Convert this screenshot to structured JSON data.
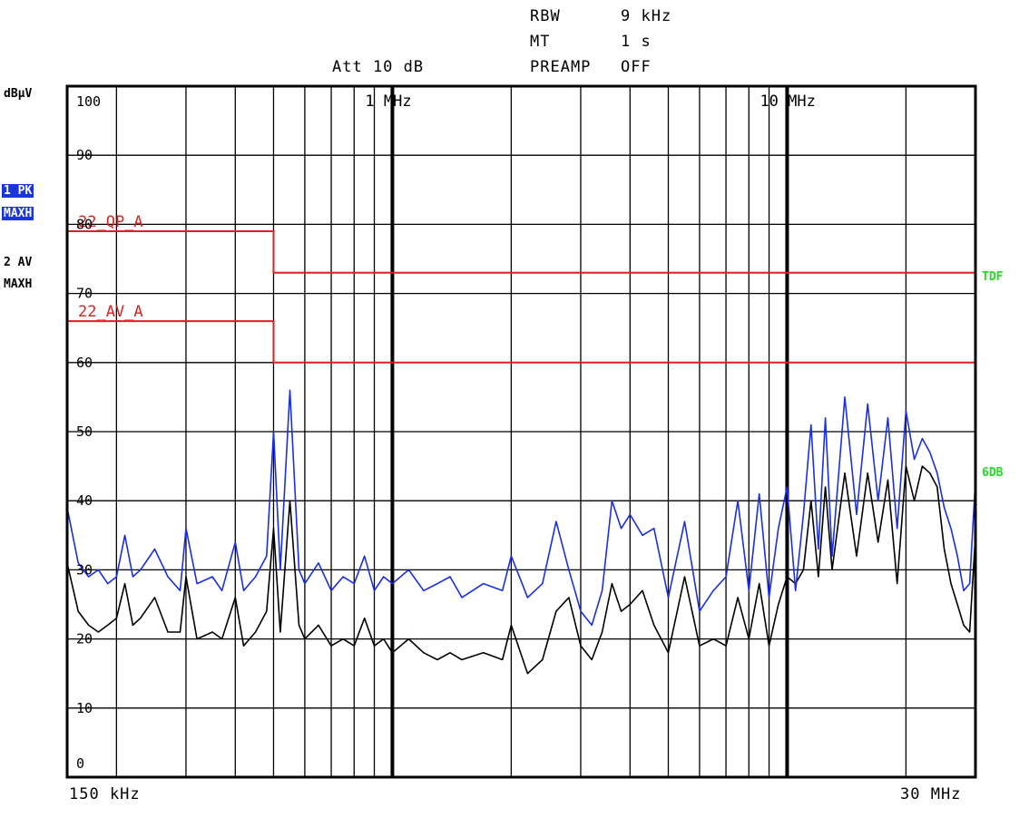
{
  "header": {
    "rbw_label": "RBW",
    "rbw_value": "9 kHz",
    "mt_label": "MT",
    "mt_value": "1 s",
    "preamp_label": "PREAMP",
    "preamp_value": "OFF",
    "att": "Att 10 dB"
  },
  "sidebar": {
    "unit": "dBµV",
    "trace1_line1": "1 PK",
    "trace1_line2": "MAXH",
    "trace2_line1": "2 AV",
    "trace2_line2": "MAXH"
  },
  "markers": {
    "right_top": "TDF",
    "right_mid": "6DB"
  },
  "colors": {
    "trace_pk": "#1a2ee6",
    "trace_av": "#000000",
    "limit": "#e02020",
    "label_green": "#22dd22",
    "trace_badge": "#1a35e0"
  },
  "chart_data": {
    "type": "line",
    "x_scale": "log",
    "x_range_hz": [
      150000,
      30000000
    ],
    "ylim": [
      0,
      100
    ],
    "ylabel": "dBµV",
    "y_ticks": [
      0,
      10,
      20,
      30,
      40,
      50,
      60,
      70,
      80,
      90,
      100
    ],
    "x_start_label": "150 kHz",
    "x_end_label": "30 MHz",
    "decade_labels": [
      {
        "freq_hz": 1000000,
        "label": "1 MHz"
      },
      {
        "freq_hz": 10000000,
        "label": "10 MHz"
      }
    ],
    "grid": true,
    "limits": [
      {
        "name": "22_QP_A",
        "segments": [
          {
            "f_start_hz": 150000,
            "f_end_hz": 500000,
            "level_db": 79
          },
          {
            "f_start_hz": 500000,
            "f_end_hz": 30000000,
            "level_db": 73
          }
        ]
      },
      {
        "name": "22_AV_A",
        "segments": [
          {
            "f_start_hz": 150000,
            "f_end_hz": 500000,
            "level_db": 66
          },
          {
            "f_start_hz": 500000,
            "f_end_hz": 30000000,
            "level_db": 60
          }
        ]
      }
    ],
    "series": [
      {
        "name": "1 PK MAXH",
        "x_mhz": [
          0.15,
          0.16,
          0.17,
          0.18,
          0.19,
          0.2,
          0.21,
          0.22,
          0.23,
          0.25,
          0.27,
          0.29,
          0.3,
          0.32,
          0.35,
          0.37,
          0.4,
          0.42,
          0.45,
          0.48,
          0.5,
          0.52,
          0.55,
          0.58,
          0.6,
          0.65,
          0.7,
          0.75,
          0.8,
          0.85,
          0.9,
          0.95,
          1.0,
          1.1,
          1.2,
          1.3,
          1.4,
          1.5,
          1.7,
          1.9,
          2.0,
          2.2,
          2.4,
          2.6,
          2.8,
          3.0,
          3.2,
          3.4,
          3.6,
          3.8,
          4.0,
          4.3,
          4.6,
          5.0,
          5.5,
          6.0,
          6.5,
          7.0,
          7.5,
          8.0,
          8.5,
          9.0,
          9.5,
          10.0,
          10.5,
          11.0,
          11.5,
          12.0,
          12.5,
          13.0,
          14.0,
          15.0,
          16.0,
          17.0,
          18.0,
          19.0,
          20.0,
          21.0,
          22.0,
          23.0,
          24.0,
          25.0,
          26.0,
          27.0,
          28.0,
          29.0,
          30.0
        ],
        "values": [
          39,
          31,
          29,
          30,
          28,
          29,
          35,
          29,
          30,
          33,
          29,
          27,
          36,
          28,
          29,
          27,
          34,
          27,
          29,
          32,
          50,
          30,
          56,
          30,
          28,
          31,
          27,
          29,
          28,
          32,
          27,
          29,
          28,
          30,
          27,
          28,
          29,
          26,
          28,
          27,
          32,
          26,
          28,
          37,
          30,
          24,
          22,
          27,
          40,
          36,
          38,
          35,
          36,
          26,
          37,
          24,
          27,
          29,
          40,
          27,
          41,
          26,
          36,
          42,
          27,
          38,
          51,
          33,
          52,
          32,
          55,
          38,
          54,
          40,
          52,
          36,
          53,
          46,
          49,
          47,
          44,
          39,
          36,
          32,
          27,
          28,
          43
        ]
      },
      {
        "name": "2 AV MAXH",
        "x_mhz": [
          0.15,
          0.16,
          0.17,
          0.18,
          0.19,
          0.2,
          0.21,
          0.22,
          0.23,
          0.25,
          0.27,
          0.29,
          0.3,
          0.32,
          0.35,
          0.37,
          0.4,
          0.42,
          0.45,
          0.48,
          0.5,
          0.52,
          0.55,
          0.58,
          0.6,
          0.65,
          0.7,
          0.75,
          0.8,
          0.85,
          0.9,
          0.95,
          1.0,
          1.1,
          1.2,
          1.3,
          1.4,
          1.5,
          1.7,
          1.9,
          2.0,
          2.2,
          2.4,
          2.6,
          2.8,
          3.0,
          3.2,
          3.4,
          3.6,
          3.8,
          4.0,
          4.3,
          4.6,
          5.0,
          5.5,
          6.0,
          6.5,
          7.0,
          7.5,
          8.0,
          8.5,
          9.0,
          9.5,
          10.0,
          10.5,
          11.0,
          11.5,
          12.0,
          12.5,
          13.0,
          14.0,
          15.0,
          16.0,
          17.0,
          18.0,
          19.0,
          20.0,
          21.0,
          22.0,
          23.0,
          24.0,
          25.0,
          26.0,
          27.0,
          28.0,
          29.0,
          30.0
        ],
        "values": [
          31,
          24,
          22,
          21,
          22,
          23,
          28,
          22,
          23,
          26,
          21,
          21,
          29,
          20,
          21,
          20,
          26,
          19,
          21,
          24,
          36,
          21,
          40,
          22,
          20,
          22,
          19,
          20,
          19,
          23,
          19,
          20,
          18,
          20,
          18,
          17,
          18,
          17,
          18,
          17,
          22,
          15,
          17,
          24,
          26,
          19,
          17,
          21,
          28,
          24,
          25,
          27,
          22,
          18,
          29,
          19,
          20,
          19,
          26,
          20,
          28,
          19,
          25,
          29,
          28,
          30,
          40,
          29,
          42,
          30,
          44,
          32,
          44,
          34,
          43,
          28,
          45,
          40,
          45,
          44,
          42,
          33,
          28,
          25,
          22,
          21,
          35
        ]
      }
    ]
  }
}
